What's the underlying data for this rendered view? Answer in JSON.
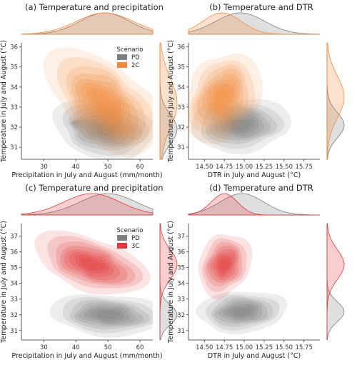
{
  "colors": {
    "PD": "#7f7f7f",
    "2C": "#f28c3c",
    "3C": "#e23a3a",
    "axis": "#333333"
  },
  "chart_data": [
    {
      "type": "scatter",
      "subtype": "joint-kde-density",
      "title": "(a) Temperature and precipitation",
      "xlabel": "Precipitation in July and August (mm/month)",
      "ylabel": "Temperature in July and August (°C)",
      "xlim": [
        23,
        64
      ],
      "ylim": [
        30.4,
        36.2
      ],
      "xticks": [
        "30",
        "40",
        "50",
        "60"
      ],
      "yticks": [
        "31",
        "32",
        "33",
        "34",
        "35",
        "36"
      ],
      "legend": {
        "title": "Scenario",
        "position": "upper-right"
      },
      "series": [
        {
          "name": "PD",
          "color": "#7f7f7f",
          "center": [
            49,
            31.9
          ],
          "spread": [
            7,
            0.7
          ],
          "tilt": -0.2,
          "extra": {
            "center": [
              40,
              32.2
            ],
            "spread": [
              2,
              0.15
            ],
            "weight": 0.3
          }
        },
        {
          "name": "2C",
          "color": "#f28c3c",
          "center": [
            49,
            33.2
          ],
          "spread": [
            8,
            1.2
          ],
          "tilt": -0.55
        }
      ]
    },
    {
      "type": "scatter",
      "subtype": "joint-kde-density",
      "title": "(b) Temperature and DTR",
      "xlabel": "DTR in July and August (°C)",
      "ylabel": "Temperature in July and August (°C)",
      "xlim": [
        14.3,
        15.95
      ],
      "ylim": [
        30.4,
        36.2
      ],
      "xticks": [
        "14.50",
        "14.75",
        "15.00",
        "15.25",
        "15.50",
        "15.75"
      ],
      "yticks": [
        "31",
        "32",
        "33",
        "34",
        "35",
        "36"
      ],
      "series": [
        {
          "name": "PD",
          "color": "#7f7f7f",
          "center": [
            14.95,
            32.1
          ],
          "spread": [
            0.28,
            0.6
          ],
          "tilt": 0.1
        },
        {
          "name": "2C",
          "color": "#f28c3c",
          "center": [
            14.72,
            33.5
          ],
          "spread": [
            0.22,
            1.0
          ],
          "tilt": 0.3
        }
      ]
    },
    {
      "type": "scatter",
      "subtype": "joint-kde-density",
      "title": "(c) Temperature and precipitation",
      "xlabel": "Precipitation in July and August (mm/month)",
      "ylabel": "Temperature in July and August (°C)",
      "xlim": [
        23,
        64
      ],
      "ylim": [
        30.4,
        37.8
      ],
      "xticks": [
        "30",
        "40",
        "50",
        "60"
      ],
      "yticks": [
        "31",
        "32",
        "33",
        "34",
        "35",
        "36",
        "37"
      ],
      "legend": {
        "title": "Scenario",
        "position": "upper-right"
      },
      "series": [
        {
          "name": "PD",
          "color": "#7f7f7f",
          "center": [
            50,
            32.0
          ],
          "spread": [
            8,
            0.6
          ],
          "tilt": -0.15
        },
        {
          "name": "3C",
          "color": "#e23a3a",
          "center": [
            45,
            35.2
          ],
          "spread": [
            8,
            0.9
          ],
          "tilt": -0.5
        }
      ]
    },
    {
      "type": "scatter",
      "subtype": "joint-kde-density",
      "title": "(d) Temperature and DTR",
      "xlabel": "DTR in July and August (°C)",
      "ylabel": "Temperature in July and August (°C)",
      "xlim": [
        14.3,
        15.95
      ],
      "ylim": [
        30.4,
        37.8
      ],
      "xticks": [
        "14.50",
        "14.75",
        "15.00",
        "15.25",
        "15.50",
        "15.75"
      ],
      "yticks": [
        "31",
        "32",
        "33",
        "34",
        "35",
        "36",
        "37"
      ],
      "series": [
        {
          "name": "PD",
          "color": "#7f7f7f",
          "center": [
            14.97,
            32.2
          ],
          "spread": [
            0.25,
            0.6
          ],
          "tilt": 0.1
        },
        {
          "name": "3C",
          "color": "#e23a3a",
          "center": [
            14.75,
            35.2
          ],
          "spread": [
            0.15,
            0.9
          ],
          "tilt": 0.2
        }
      ]
    }
  ]
}
